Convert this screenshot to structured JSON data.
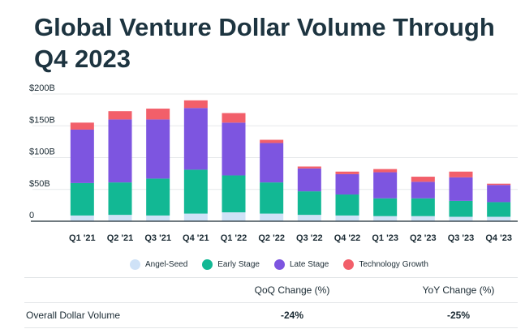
{
  "title": "Global Venture Dollar Volume Through Q4 2023",
  "chart_data": {
    "type": "bar",
    "stacked": true,
    "categories": [
      "Q1 '21",
      "Q2 '21",
      "Q3 '21",
      "Q4 '21",
      "Q1 '22",
      "Q2 '22",
      "Q3 '22",
      "Q4 '22",
      "Q1 '23",
      "Q2 '23",
      "Q3 '23",
      "Q4 '23"
    ],
    "ylim": [
      0,
      200
    ],
    "yticks": [
      {
        "value": 0,
        "label": "0"
      },
      {
        "value": 50,
        "label": "$50B"
      },
      {
        "value": 100,
        "label": "$100B"
      },
      {
        "value": 150,
        "label": "$150B"
      },
      {
        "value": 200,
        "label": "$200B"
      }
    ],
    "series": [
      {
        "name": "Angel-Seed",
        "color": "#cfe2f7",
        "values": [
          9,
          10,
          9,
          12,
          14,
          12,
          10,
          9,
          8,
          8,
          7,
          7
        ]
      },
      {
        "name": "Early Stage",
        "color": "#12b894",
        "values": [
          51,
          51,
          58,
          69,
          58,
          49,
          37,
          33,
          28,
          28,
          25,
          23
        ]
      },
      {
        "name": "Late Stage",
        "color": "#7d55e0",
        "values": [
          84,
          99,
          93,
          97,
          83,
          62,
          36,
          32,
          41,
          26,
          37,
          27
        ]
      },
      {
        "name": "Technology Growth",
        "color": "#f25f6a",
        "values": [
          11,
          13,
          17,
          12,
          15,
          5,
          3,
          4,
          5,
          8,
          9,
          2
        ]
      }
    ],
    "xlabel": "",
    "ylabel": "",
    "legend_position": "bottom",
    "grid": true
  },
  "legend": [
    {
      "label": "Angel-Seed",
      "color": "#cfe2f7"
    },
    {
      "label": "Early Stage",
      "color": "#12b894"
    },
    {
      "label": "Late Stage",
      "color": "#7d55e0"
    },
    {
      "label": "Technology Growth",
      "color": "#f25f6a"
    }
  ],
  "summary": {
    "header": {
      "qoq": "QoQ Change (%)",
      "yoy": "YoY Change (%)"
    },
    "row": {
      "label": "Overall Dollar Volume",
      "qoq": "-24%",
      "yoy": "-25%"
    }
  }
}
